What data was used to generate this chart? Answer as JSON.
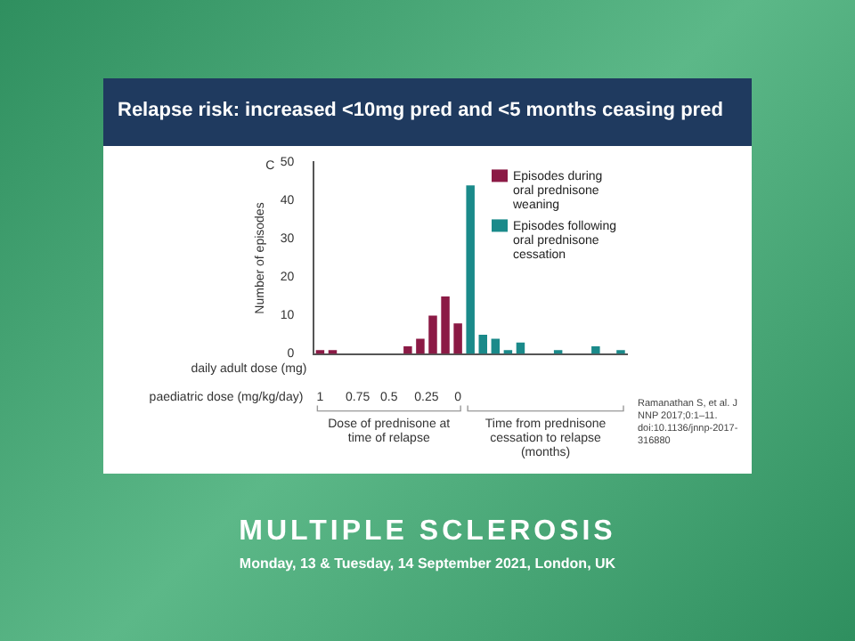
{
  "chart_data": {
    "type": "bar",
    "title": "Relapse risk: increased <10mg pred and <5 months ceasing pred",
    "ylabel": "Number of episodes",
    "categories": [
      null,
      null,
      null,
      null,
      null,
      null,
      null,
      null,
      null,
      null,
      null,
      null,
      null,
      null,
      null,
      null,
      null,
      null,
      null,
      null,
      null,
      null,
      null,
      null,
      null
    ],
    "series": [
      {
        "name": "Episodes during oral prednisone weaning",
        "color": "#8b1a45",
        "values": [
          1,
          1,
          0,
          0,
          0,
          0,
          0,
          2,
          4,
          10,
          15,
          8,
          null,
          null,
          null,
          null,
          null,
          null,
          null,
          null,
          null,
          null,
          null,
          null,
          null
        ]
      },
      {
        "name": "Episodes following oral prednisone cessation",
        "color": "#1a8a8a",
        "values": [
          null,
          null,
          null,
          null,
          null,
          null,
          null,
          null,
          null,
          null,
          null,
          null,
          44,
          5,
          4,
          1,
          3,
          0,
          0,
          1,
          0,
          0,
          2,
          0,
          1
        ]
      }
    ],
    "ylim": [
      0,
      50
    ],
    "yticks": [
      0,
      10,
      20,
      30,
      40,
      50
    ],
    "grid": false,
    "legend": "top right",
    "annotations": [
      "C",
      "daily adult dose (mg)",
      "paediatric dose (mg/kg/day)",
      "1",
      "0.75",
      "0.5",
      "0.25",
      "0",
      "Dose of prednisone at time of relapse",
      "Time from prednisone cessation to relapse (months)",
      "Ramanathan S, et al. J NNP 2017;0:1–11. doi:10.1136/jnnp-2017-316880",
      "MULTIPLE SCLEROSIS",
      "Monday, 13 & Tuesday, 14 September 2021, London, UK"
    ]
  }
}
